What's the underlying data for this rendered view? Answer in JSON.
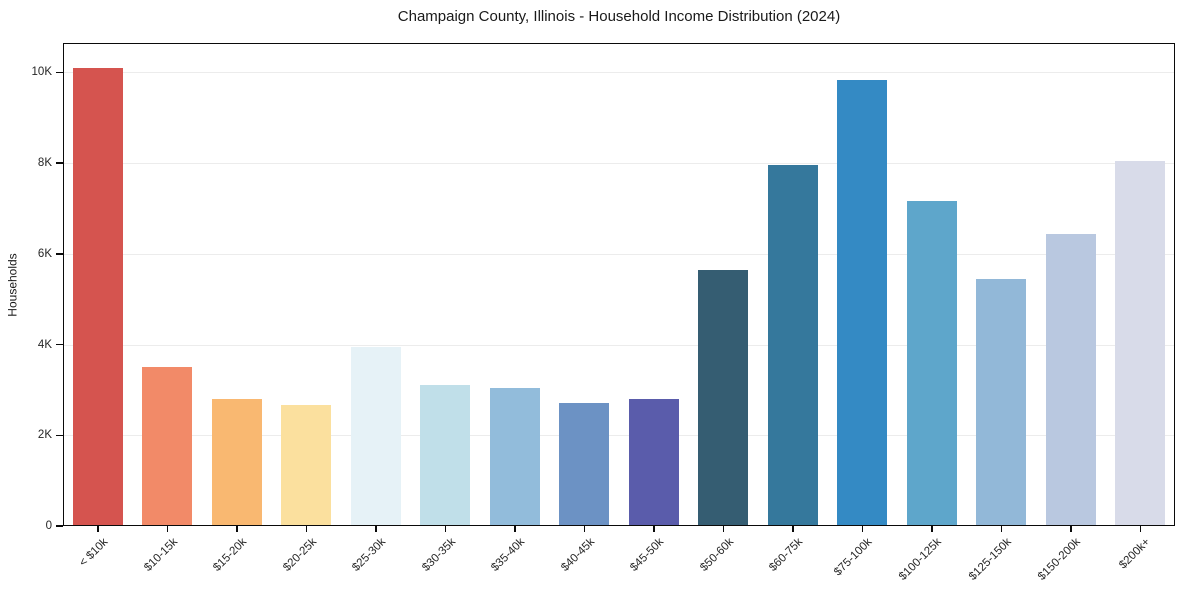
{
  "chart_data": {
    "type": "bar",
    "title": "Champaign County, Illinois - Household Income Distribution (2024)",
    "xlabel": "",
    "ylabel": "Households",
    "categories": [
      "< $10k",
      "$10-15k",
      "$15-20k",
      "$20-25k",
      "$25-30k",
      "$30-35k",
      "$35-40k",
      "$40-45k",
      "$45-50k",
      "$50-60k",
      "$60-75k",
      "$75-100k",
      "$100-125k",
      "$125-150k",
      "$150-200k",
      "$200k+"
    ],
    "values": [
      10100,
      3500,
      2790,
      2660,
      3950,
      3120,
      3050,
      2720,
      2800,
      5640,
      7960,
      9830,
      7170,
      5440,
      6440,
      8050
    ],
    "bar_colors": [
      "#d5544f",
      "#f28a68",
      "#f9b871",
      "#fbe09e",
      "#e6f2f7",
      "#c0dfe9",
      "#92bcdb",
      "#6c92c4",
      "#5a5cab",
      "#355d72",
      "#35789c",
      "#348ac4",
      "#5ea6cb",
      "#92b8d8",
      "#b9c8e0",
      "#d8dbe9"
    ],
    "ylim": [
      0,
      10650
    ],
    "yticks": {
      "values": [
        0,
        2000,
        4000,
        6000,
        8000,
        10000
      ],
      "labels": [
        "0",
        "2K",
        "4K",
        "6K",
        "8K",
        "10K"
      ]
    },
    "grid": "horizontal-only",
    "legend": "none",
    "frame": "all-four-spines"
  }
}
